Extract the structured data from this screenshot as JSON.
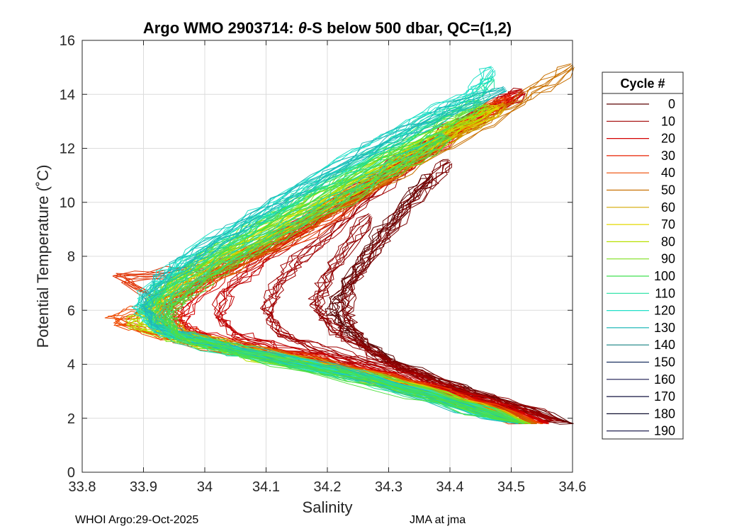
{
  "chart_data": {
    "type": "line",
    "title_prefix": "Argo WMO 2903714: ",
    "title_theta": "θ",
    "title_suffix": "-S below 500 dbar,  QC=(1,2)",
    "xlabel": "Salinity",
    "ylabel": "Potential Temperature (˚C)",
    "xlim": [
      33.8,
      34.6
    ],
    "ylim": [
      0,
      16
    ],
    "xticks": [
      "33.8",
      "33.9",
      "34",
      "34.1",
      "34.2",
      "34.3",
      "34.4",
      "34.5",
      "34.6"
    ],
    "yticks": [
      "0",
      "2",
      "4",
      "6",
      "8",
      "10",
      "12",
      "14",
      "16"
    ],
    "grid": true,
    "legend": {
      "title": "Cycle #",
      "placement": "right",
      "entries": [
        {
          "label": "0",
          "color": "#5a0000"
        },
        {
          "label": "10",
          "color": "#a00000"
        },
        {
          "label": "20",
          "color": "#d40000"
        },
        {
          "label": "30",
          "color": "#e82000"
        },
        {
          "label": "40",
          "color": "#ee4a00"
        },
        {
          "label": "50",
          "color": "#c87000"
        },
        {
          "label": "60",
          "color": "#d4a800"
        },
        {
          "label": "70",
          "color": "#e4d800"
        },
        {
          "label": "80",
          "color": "#b8e000"
        },
        {
          "label": "90",
          "color": "#80e020"
        },
        {
          "label": "100",
          "color": "#40e050"
        },
        {
          "label": "110",
          "color": "#20e0a0"
        },
        {
          "label": "120",
          "color": "#20e0c8"
        },
        {
          "label": "130",
          "color": "#20b8b8"
        },
        {
          "label": "140",
          "color": "#158080"
        },
        {
          "label": "150",
          "color": "#1a3060"
        },
        {
          "label": "160",
          "color": "#1a1a50"
        },
        {
          "label": "170",
          "color": "#141440"
        },
        {
          "label": "180",
          "color": "#101030"
        },
        {
          "label": "190",
          "color": "#0c0c40"
        }
      ]
    },
    "series": [
      {
        "color": "#5a0000",
        "points": [
          [
            34.6,
            1.8
          ],
          [
            34.45,
            2.8
          ],
          [
            34.33,
            3.8
          ],
          [
            34.27,
            4.6
          ],
          [
            34.23,
            5.3
          ],
          [
            34.21,
            5.9
          ],
          [
            34.22,
            6.6
          ],
          [
            34.25,
            7.6
          ],
          [
            34.28,
            8.6
          ],
          [
            34.33,
            10.0
          ],
          [
            34.37,
            11.0
          ]
        ]
      },
      {
        "color": "#7a0000",
        "points": [
          [
            34.59,
            1.85
          ],
          [
            34.44,
            2.9
          ],
          [
            34.32,
            3.9
          ],
          [
            34.26,
            4.7
          ],
          [
            34.24,
            5.4
          ],
          [
            34.23,
            6.0
          ],
          [
            34.24,
            7.0
          ],
          [
            34.27,
            8.0
          ],
          [
            34.31,
            9.2
          ],
          [
            34.36,
            10.6
          ],
          [
            34.4,
            11.5
          ]
        ]
      },
      {
        "color": "#900000",
        "points": [
          [
            34.58,
            1.9
          ],
          [
            34.43,
            2.9
          ],
          [
            34.31,
            4.0
          ],
          [
            34.24,
            4.8
          ],
          [
            34.2,
            5.5
          ],
          [
            34.18,
            6.2
          ],
          [
            34.2,
            7.2
          ],
          [
            34.23,
            8.3
          ],
          [
            34.27,
            9.5
          ]
        ]
      },
      {
        "color": "#a00000",
        "points": [
          [
            34.57,
            1.9
          ],
          [
            34.41,
            3.0
          ],
          [
            34.28,
            4.0
          ],
          [
            34.18,
            4.6
          ],
          [
            34.12,
            5.2
          ],
          [
            34.1,
            6.0
          ],
          [
            34.12,
            7.0
          ],
          [
            34.16,
            8.0
          ],
          [
            34.22,
            9.2
          ],
          [
            34.3,
            10.8
          ],
          [
            34.38,
            12.2
          ],
          [
            34.46,
            13.4
          ],
          [
            34.52,
            14.1
          ]
        ]
      },
      {
        "color": "#c00000",
        "points": [
          [
            34.56,
            1.85
          ],
          [
            34.4,
            3.0
          ],
          [
            34.25,
            4.0
          ],
          [
            34.12,
            4.6
          ],
          [
            34.05,
            5.1
          ],
          [
            34.02,
            5.8
          ],
          [
            34.04,
            6.8
          ],
          [
            34.1,
            8.0
          ],
          [
            34.18,
            9.3
          ],
          [
            34.27,
            10.8
          ],
          [
            34.36,
            12.1
          ],
          [
            34.45,
            13.3
          ],
          [
            34.52,
            14.1
          ]
        ]
      },
      {
        "color": "#d40000",
        "points": [
          [
            34.56,
            1.8
          ],
          [
            34.38,
            3.1
          ],
          [
            34.2,
            4.1
          ],
          [
            34.08,
            4.6
          ],
          [
            34.0,
            5.0
          ],
          [
            33.96,
            5.6
          ],
          [
            33.98,
            6.5
          ],
          [
            34.05,
            7.7
          ],
          [
            34.15,
            9.0
          ],
          [
            34.25,
            10.4
          ],
          [
            34.35,
            11.8
          ],
          [
            34.44,
            13.0
          ],
          [
            34.51,
            14.0
          ]
        ]
      },
      {
        "color": "#e82000",
        "points": [
          [
            34.55,
            1.8
          ],
          [
            34.36,
            3.1
          ],
          [
            34.18,
            4.1
          ],
          [
            34.04,
            4.6
          ],
          [
            33.96,
            5.0
          ],
          [
            33.92,
            5.5
          ],
          [
            33.95,
            6.4
          ],
          [
            34.02,
            7.5
          ],
          [
            34.12,
            8.8
          ],
          [
            34.23,
            10.2
          ],
          [
            34.33,
            11.6
          ],
          [
            34.42,
            12.8
          ],
          [
            34.5,
            13.9
          ]
        ]
      },
      {
        "color": "#ee4a00",
        "points": [
          [
            34.55,
            1.8
          ],
          [
            34.35,
            3.2
          ],
          [
            34.15,
            4.2
          ],
          [
            34.0,
            4.7
          ],
          [
            33.92,
            5.1
          ],
          [
            33.85,
            5.6
          ],
          [
            33.9,
            6.0
          ],
          [
            34.0,
            7.0
          ],
          [
            34.1,
            8.4
          ],
          [
            34.22,
            10.0
          ],
          [
            34.32,
            11.4
          ],
          [
            34.42,
            12.8
          ],
          [
            34.49,
            13.8
          ]
        ]
      },
      {
        "color": "#e03000",
        "points": [
          [
            34.54,
            1.8
          ],
          [
            34.34,
            3.2
          ],
          [
            34.16,
            4.2
          ],
          [
            34.02,
            4.8
          ],
          [
            33.96,
            5.3
          ],
          [
            33.95,
            6.0
          ],
          [
            33.86,
            7.2
          ],
          [
            34.05,
            7.6
          ],
          [
            34.18,
            9.0
          ],
          [
            34.28,
            10.6
          ],
          [
            34.38,
            12.2
          ],
          [
            34.46,
            13.4
          ]
        ]
      },
      {
        "color": "#c87000",
        "points": [
          [
            34.54,
            1.8
          ],
          [
            34.33,
            3.2
          ],
          [
            34.12,
            4.3
          ],
          [
            33.98,
            4.9
          ],
          [
            33.93,
            5.4
          ],
          [
            33.94,
            6.1
          ],
          [
            33.99,
            7.0
          ],
          [
            34.09,
            8.2
          ],
          [
            34.2,
            9.6
          ],
          [
            34.31,
            11.0
          ],
          [
            34.42,
            12.5
          ],
          [
            34.52,
            13.8
          ],
          [
            34.6,
            15.05
          ]
        ]
      },
      {
        "color": "#d4a800",
        "points": [
          [
            34.53,
            1.8
          ],
          [
            34.32,
            3.3
          ],
          [
            34.1,
            4.4
          ],
          [
            33.98,
            5.0
          ],
          [
            33.92,
            5.6
          ],
          [
            33.93,
            6.3
          ],
          [
            33.98,
            7.2
          ],
          [
            34.08,
            8.4
          ],
          [
            34.2,
            9.8
          ],
          [
            34.31,
            11.2
          ],
          [
            34.41,
            12.5
          ],
          [
            34.49,
            13.6
          ]
        ]
      },
      {
        "color": "#e4d800",
        "points": [
          [
            34.53,
            1.8
          ],
          [
            34.31,
            3.3
          ],
          [
            34.08,
            4.4
          ],
          [
            33.96,
            5.0
          ],
          [
            33.91,
            5.7
          ],
          [
            33.92,
            6.4
          ],
          [
            33.98,
            7.4
          ],
          [
            34.08,
            8.6
          ],
          [
            34.19,
            9.9
          ],
          [
            34.3,
            11.3
          ],
          [
            34.4,
            12.6
          ],
          [
            34.48,
            13.5
          ]
        ]
      },
      {
        "color": "#b8e000",
        "points": [
          [
            34.53,
            1.8
          ],
          [
            34.3,
            3.3
          ],
          [
            34.07,
            4.4
          ],
          [
            33.95,
            5.0
          ],
          [
            33.88,
            5.5
          ],
          [
            33.92,
            6.2
          ],
          [
            33.97,
            7.3
          ],
          [
            34.07,
            8.6
          ],
          [
            34.18,
            10.0
          ],
          [
            34.29,
            11.4
          ],
          [
            34.39,
            12.6
          ],
          [
            34.47,
            13.5
          ]
        ]
      },
      {
        "color": "#80e020",
        "points": [
          [
            34.53,
            1.8
          ],
          [
            34.3,
            3.4
          ],
          [
            34.06,
            4.5
          ],
          [
            33.94,
            5.1
          ],
          [
            33.9,
            5.8
          ],
          [
            33.92,
            6.6
          ],
          [
            33.97,
            7.5
          ],
          [
            34.07,
            8.8
          ],
          [
            34.18,
            10.2
          ],
          [
            34.29,
            11.6
          ],
          [
            34.39,
            12.8
          ],
          [
            34.46,
            13.6
          ]
        ]
      },
      {
        "color": "#40e050",
        "points": [
          [
            34.52,
            1.8
          ],
          [
            34.29,
            3.4
          ],
          [
            34.05,
            4.5
          ],
          [
            33.94,
            5.2
          ],
          [
            33.91,
            5.9
          ],
          [
            33.93,
            6.7
          ],
          [
            33.98,
            7.6
          ],
          [
            34.07,
            8.9
          ],
          [
            34.18,
            10.3
          ],
          [
            34.29,
            11.7
          ],
          [
            34.38,
            12.9
          ],
          [
            34.45,
            13.7
          ]
        ]
      },
      {
        "color": "#20e0a0",
        "points": [
          [
            34.52,
            1.8
          ],
          [
            34.28,
            3.4
          ],
          [
            34.04,
            4.5
          ],
          [
            33.93,
            5.2
          ],
          [
            33.9,
            6.0
          ],
          [
            33.93,
            6.8
          ],
          [
            33.98,
            7.8
          ],
          [
            34.07,
            9.0
          ],
          [
            34.17,
            10.4
          ],
          [
            34.28,
            11.8
          ],
          [
            34.37,
            13.0
          ],
          [
            34.44,
            13.8
          ],
          [
            34.47,
            14.6
          ]
        ]
      },
      {
        "color": "#20e0c8",
        "points": [
          [
            34.51,
            1.8
          ],
          [
            34.27,
            3.5
          ],
          [
            34.03,
            4.6
          ],
          [
            33.92,
            5.3
          ],
          [
            33.89,
            6.1
          ],
          [
            33.92,
            7.0
          ],
          [
            33.97,
            8.0
          ],
          [
            34.06,
            9.2
          ],
          [
            34.16,
            10.6
          ],
          [
            34.27,
            12.0
          ],
          [
            34.36,
            13.2
          ],
          [
            34.43,
            13.9
          ],
          [
            34.47,
            14.95
          ]
        ]
      },
      {
        "color": "#20b8b8",
        "points": [
          [
            34.51,
            1.8
          ],
          [
            34.26,
            3.5
          ],
          [
            34.02,
            4.7
          ],
          [
            33.92,
            5.4
          ],
          [
            33.9,
            6.2
          ],
          [
            33.93,
            7.1
          ],
          [
            33.99,
            8.1
          ],
          [
            34.08,
            9.4
          ],
          [
            34.18,
            10.8
          ],
          [
            34.29,
            12.2
          ],
          [
            34.39,
            13.3
          ],
          [
            34.49,
            14.2
          ]
        ]
      },
      {
        "color": "#2ad890",
        "points": [
          [
            34.52,
            1.8
          ],
          [
            34.27,
            3.4
          ],
          [
            34.05,
            4.5
          ],
          [
            33.95,
            5.1
          ],
          [
            33.93,
            5.8
          ],
          [
            33.95,
            6.5
          ],
          [
            34.0,
            7.4
          ],
          [
            34.09,
            8.6
          ],
          [
            34.2,
            10.0
          ],
          [
            34.3,
            11.3
          ],
          [
            34.39,
            12.5
          ]
        ]
      },
      {
        "color": "#50e040",
        "points": [
          [
            34.52,
            1.8
          ],
          [
            34.28,
            3.3
          ],
          [
            34.06,
            4.4
          ],
          [
            33.96,
            5.0
          ],
          [
            33.94,
            5.7
          ],
          [
            33.96,
            6.4
          ],
          [
            34.01,
            7.3
          ],
          [
            34.1,
            8.5
          ],
          [
            34.21,
            9.9
          ],
          [
            34.31,
            11.2
          ],
          [
            34.4,
            12.4
          ]
        ]
      }
    ]
  },
  "footer": {
    "left": "WHOI Argo:29-Oct-2025",
    "right": "JMA at jma"
  }
}
